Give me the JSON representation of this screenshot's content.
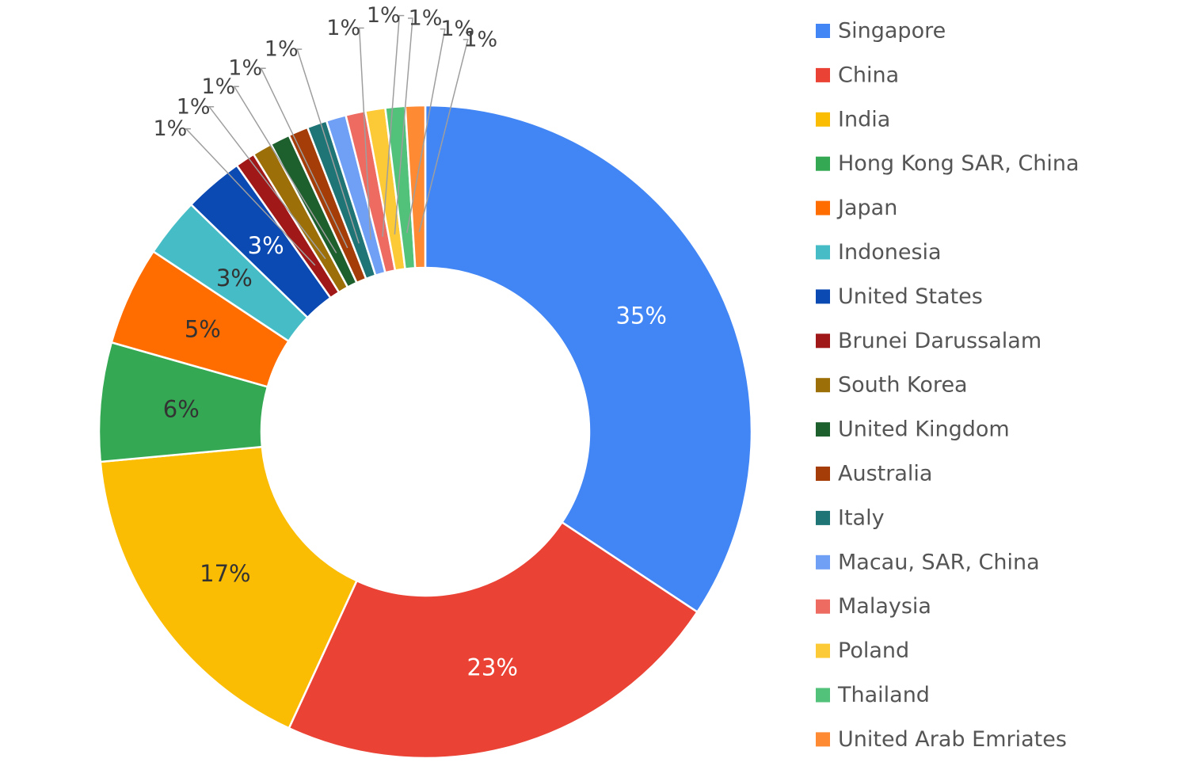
{
  "chart_data": {
    "type": "pie",
    "donut": true,
    "legend_position": "right",
    "slices": [
      {
        "name": "Singapore",
        "value": 35,
        "label": "35%",
        "color": "#4285F4"
      },
      {
        "name": "China",
        "value": 23,
        "label": "23%",
        "color": "#EA4335"
      },
      {
        "name": "India",
        "value": 17,
        "label": "17%",
        "color": "#FBBC04"
      },
      {
        "name": "Hong Kong SAR, China",
        "value": 6,
        "label": "6%",
        "color": "#34A853"
      },
      {
        "name": "Japan",
        "value": 5,
        "label": "5%",
        "color": "#FF6D01"
      },
      {
        "name": "Indonesia",
        "value": 3,
        "label": "3%",
        "color": "#46BDC6"
      },
      {
        "name": "United States",
        "value": 3,
        "label": "3%",
        "color": "#0B49B3"
      },
      {
        "name": "Brunei Darussalam",
        "value": 1,
        "label": "1%",
        "color": "#A01818"
      },
      {
        "name": "South Korea",
        "value": 1,
        "label": "1%",
        "color": "#9C6F08"
      },
      {
        "name": "United Kingdom",
        "value": 1,
        "label": "1%",
        "color": "#1E5F2E"
      },
      {
        "name": "Australia",
        "value": 1,
        "label": "1%",
        "color": "#A53D08"
      },
      {
        "name": "Italy",
        "value": 1,
        "label": "1%",
        "color": "#1F7476"
      },
      {
        "name": "Macau, SAR, China",
        "value": 1,
        "label": "1%",
        "color": "#6FA0F6"
      },
      {
        "name": "Malaysia",
        "value": 1,
        "label": "1%",
        "color": "#EE6B61"
      },
      {
        "name": "Poland",
        "value": 1,
        "label": "1%",
        "color": "#FCCA36"
      },
      {
        "name": "Thailand",
        "value": 1,
        "label": "1%",
        "color": "#52C27A"
      },
      {
        "name": "United Arab Emriates",
        "value": 1,
        "label": "1%",
        "color": "#FF8A34"
      }
    ]
  }
}
